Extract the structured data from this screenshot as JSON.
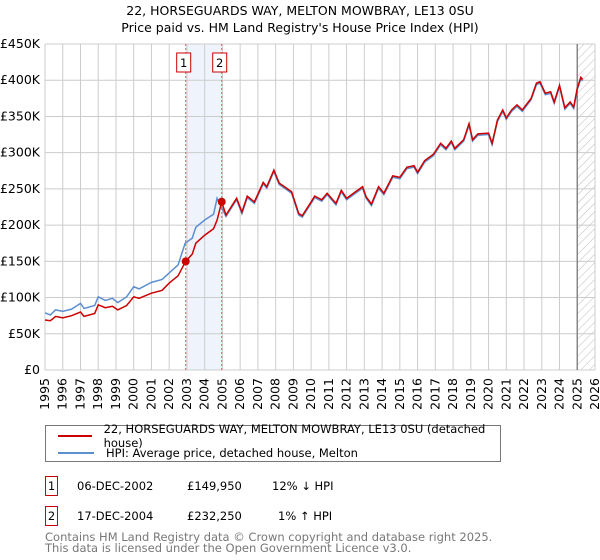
{
  "title": "22, HORSEGUARDS WAY, MELTON MOWBRAY, LE13 0SU",
  "subtitle": "Price paid vs. HM Land Registry's House Price Index (HPI)",
  "colors": {
    "price": "#cc0000",
    "hpi": "#5b8fd0",
    "shade": "#eef3fc"
  },
  "chart_data": {
    "type": "line",
    "ylim": [
      0,
      450000
    ],
    "xlim": [
      1995,
      2026
    ],
    "yticks": [
      "£0",
      "£50K",
      "£100K",
      "£150K",
      "£200K",
      "£250K",
      "£300K",
      "£350K",
      "£400K",
      "£450K"
    ],
    "xticks": [
      "1995",
      "1996",
      "1997",
      "1998",
      "1999",
      "2000",
      "2001",
      "2002",
      "2003",
      "2004",
      "2005",
      "2006",
      "2007",
      "2008",
      "2009",
      "2010",
      "2011",
      "2012",
      "2013",
      "2014",
      "2015",
      "2016",
      "2017",
      "2018",
      "2019",
      "2020",
      "2021",
      "2022",
      "2023",
      "2024",
      "2025",
      "2026"
    ],
    "hpi": [
      [
        1995,
        79
      ],
      [
        1995.3,
        76
      ],
      [
        1995.6,
        83
      ],
      [
        1996,
        81
      ],
      [
        1996.5,
        84
      ],
      [
        1997,
        92
      ],
      [
        1997.2,
        85
      ],
      [
        1997.8,
        89
      ],
      [
        1998,
        101
      ],
      [
        1998.4,
        96
      ],
      [
        1998.8,
        99
      ],
      [
        1999.1,
        93
      ],
      [
        1999.6,
        101
      ],
      [
        2000,
        115
      ],
      [
        2000.3,
        112
      ],
      [
        2001,
        121
      ],
      [
        2001.6,
        125
      ],
      [
        2002,
        134
      ],
      [
        2002.5,
        145
      ],
      [
        2002.9,
        175
      ],
      [
        2003.3,
        182
      ],
      [
        2003.5,
        197
      ],
      [
        2004,
        207
      ],
      [
        2004.5,
        215
      ],
      [
        2004.7,
        237
      ],
      [
        2004.9,
        227
      ],
      [
        2005.2,
        212
      ],
      [
        2005.8,
        235
      ],
      [
        2006.1,
        216
      ],
      [
        2006.4,
        238
      ],
      [
        2006.8,
        230
      ],
      [
        2007.3,
        257
      ],
      [
        2007.5,
        251
      ],
      [
        2007.9,
        274
      ],
      [
        2008.2,
        256
      ],
      [
        2008.5,
        251
      ],
      [
        2008.9,
        244
      ],
      [
        2009.3,
        214
      ],
      [
        2009.5,
        211
      ],
      [
        2010,
        230
      ],
      [
        2010.2,
        238
      ],
      [
        2010.6,
        233
      ],
      [
        2010.9,
        242
      ],
      [
        2011.4,
        228
      ],
      [
        2011.7,
        246
      ],
      [
        2012,
        235
      ],
      [
        2012.5,
        244
      ],
      [
        2012.9,
        251
      ],
      [
        2013.1,
        237
      ],
      [
        2013.4,
        227
      ],
      [
        2013.8,
        251
      ],
      [
        2014.1,
        242
      ],
      [
        2014.6,
        266
      ],
      [
        2015,
        264
      ],
      [
        2015.4,
        278
      ],
      [
        2015.8,
        280
      ],
      [
        2016,
        271
      ],
      [
        2016.4,
        287
      ],
      [
        2016.9,
        296
      ],
      [
        2017.3,
        311
      ],
      [
        2017.6,
        304
      ],
      [
        2017.9,
        314
      ],
      [
        2018.1,
        304
      ],
      [
        2018.6,
        316
      ],
      [
        2018.9,
        338
      ],
      [
        2019.1,
        316
      ],
      [
        2019.4,
        324
      ],
      [
        2020,
        325
      ],
      [
        2020.2,
        311
      ],
      [
        2020.5,
        343
      ],
      [
        2020.8,
        357
      ],
      [
        2021,
        346
      ],
      [
        2021.3,
        357
      ],
      [
        2021.6,
        364
      ],
      [
        2021.9,
        357
      ],
      [
        2022.4,
        373
      ],
      [
        2022.7,
        394
      ],
      [
        2022.9,
        396
      ],
      [
        2023.2,
        380
      ],
      [
        2023.5,
        382
      ],
      [
        2023.7,
        368
      ],
      [
        2024,
        391
      ],
      [
        2024.3,
        360
      ],
      [
        2024.6,
        368
      ],
      [
        2024.8,
        361
      ],
      [
        2025,
        387
      ],
      [
        2025.2,
        402
      ],
      [
        2025.3,
        399
      ]
    ],
    "price": [
      [
        1995,
        69
      ],
      [
        1995.3,
        68
      ],
      [
        1995.6,
        74
      ],
      [
        1996,
        72
      ],
      [
        1996.5,
        75
      ],
      [
        1997,
        80
      ],
      [
        1997.2,
        74
      ],
      [
        1997.8,
        78
      ],
      [
        1998,
        90
      ],
      [
        1998.4,
        86
      ],
      [
        1998.8,
        88
      ],
      [
        1999.1,
        83
      ],
      [
        1999.6,
        89
      ],
      [
        2000,
        101
      ],
      [
        2000.3,
        99
      ],
      [
        2001,
        106
      ],
      [
        2001.6,
        110
      ],
      [
        2002,
        120
      ],
      [
        2002.5,
        130
      ],
      [
        2002.93,
        150
      ],
      [
        2003.3,
        160
      ],
      [
        2003.5,
        175
      ],
      [
        2004,
        186
      ],
      [
        2004.5,
        195
      ],
      [
        2004.7,
        207
      ],
      [
        2004.96,
        232
      ],
      [
        2005.2,
        214
      ],
      [
        2005.8,
        237
      ],
      [
        2006.1,
        218
      ],
      [
        2006.4,
        240
      ],
      [
        2006.8,
        232
      ],
      [
        2007.3,
        259
      ],
      [
        2007.5,
        253
      ],
      [
        2007.9,
        276
      ],
      [
        2008.2,
        258
      ],
      [
        2008.5,
        253
      ],
      [
        2008.9,
        246
      ],
      [
        2009.3,
        216
      ],
      [
        2009.5,
        213
      ],
      [
        2010,
        232
      ],
      [
        2010.2,
        240
      ],
      [
        2010.6,
        235
      ],
      [
        2010.9,
        244
      ],
      [
        2011.4,
        230
      ],
      [
        2011.7,
        248
      ],
      [
        2012,
        237
      ],
      [
        2012.5,
        246
      ],
      [
        2012.9,
        253
      ],
      [
        2013.1,
        239
      ],
      [
        2013.4,
        229
      ],
      [
        2013.8,
        253
      ],
      [
        2014.1,
        244
      ],
      [
        2014.6,
        268
      ],
      [
        2015,
        266
      ],
      [
        2015.4,
        280
      ],
      [
        2015.8,
        282
      ],
      [
        2016,
        273
      ],
      [
        2016.4,
        289
      ],
      [
        2016.9,
        298
      ],
      [
        2017.3,
        313
      ],
      [
        2017.6,
        306
      ],
      [
        2017.9,
        316
      ],
      [
        2018.1,
        306
      ],
      [
        2018.6,
        318
      ],
      [
        2018.9,
        340
      ],
      [
        2019.1,
        318
      ],
      [
        2019.4,
        326
      ],
      [
        2020,
        327
      ],
      [
        2020.2,
        313
      ],
      [
        2020.5,
        345
      ],
      [
        2020.8,
        359
      ],
      [
        2021,
        348
      ],
      [
        2021.3,
        359
      ],
      [
        2021.6,
        366
      ],
      [
        2021.9,
        359
      ],
      [
        2022.4,
        375
      ],
      [
        2022.7,
        396
      ],
      [
        2022.9,
        398
      ],
      [
        2023.2,
        382
      ],
      [
        2023.5,
        384
      ],
      [
        2023.7,
        370
      ],
      [
        2024,
        393
      ],
      [
        2024.3,
        362
      ],
      [
        2024.6,
        370
      ],
      [
        2024.8,
        363
      ],
      [
        2025,
        389
      ],
      [
        2025.2,
        404
      ],
      [
        2025.3,
        401
      ]
    ],
    "sales": [
      {
        "label": "1",
        "x": 2002.93,
        "y": 149950
      },
      {
        "label": "2",
        "x": 2004.96,
        "y": 232250
      }
    ],
    "data_end": 2025.0
  },
  "legend": {
    "price": "22, HORSEGUARDS WAY, MELTON MOWBRAY, LE13 0SU (detached house)",
    "hpi": "HPI: Average price, detached house, Melton"
  },
  "transactions": [
    {
      "num": "1",
      "date": "06-DEC-2002",
      "price": "£149,950",
      "hpi": "12% ↓ HPI"
    },
    {
      "num": "2",
      "date": "17-DEC-2004",
      "price": "£232,250",
      "hpi": "1% ↑ HPI"
    }
  ],
  "footer": [
    "Contains HM Land Registry data © Crown copyright and database right 2025.",
    "This data is licensed under the Open Government Licence v3.0."
  ]
}
